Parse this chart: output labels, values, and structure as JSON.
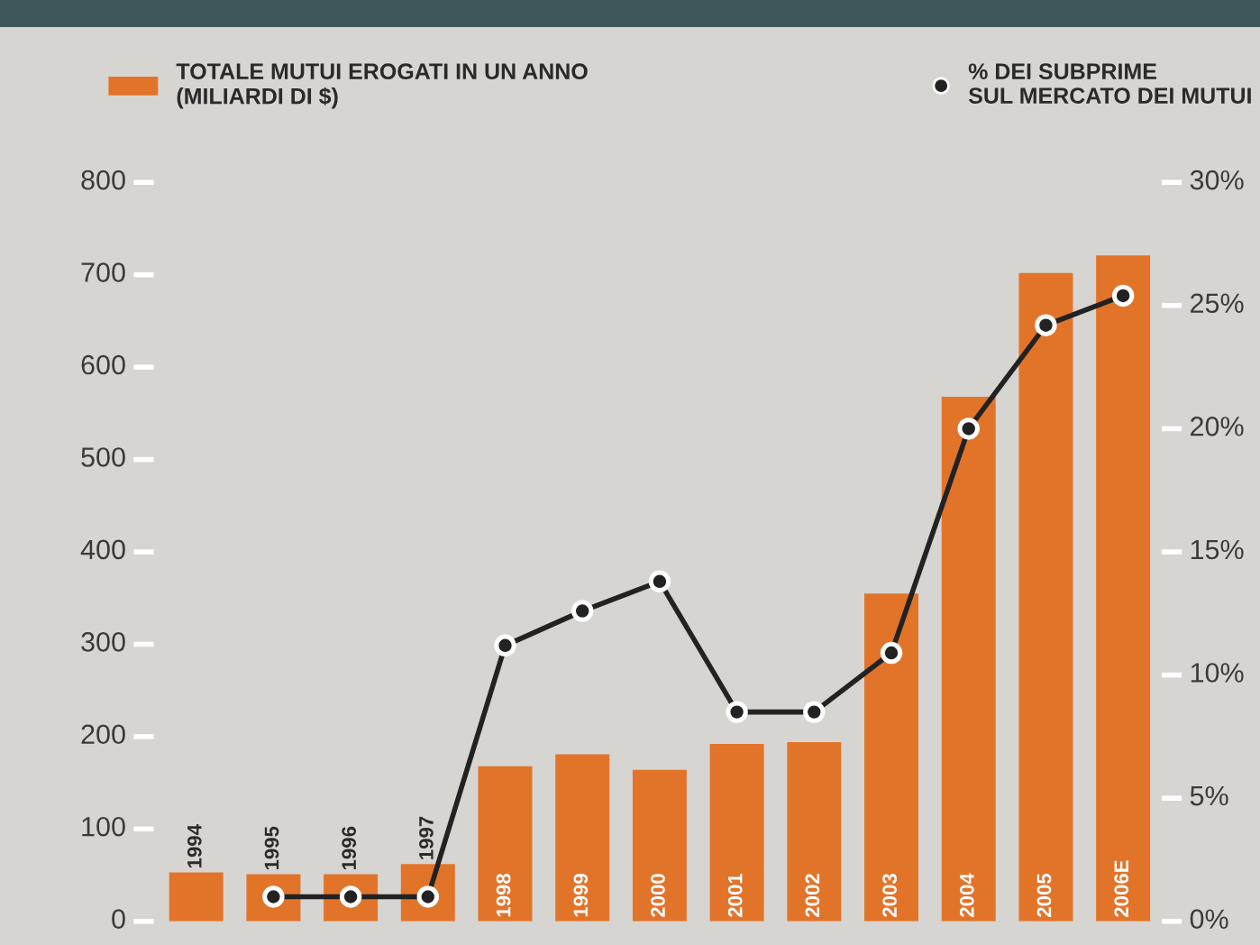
{
  "chart_data": {
    "type": "bar",
    "categories": [
      "1994",
      "1995",
      "1996",
      "1997",
      "1998",
      "1999",
      "2000",
      "2001",
      "2002",
      "2003",
      "2004",
      "2005",
      "2006E"
    ],
    "series": [
      {
        "name": "TOTALE MUTUI EROGATI IN UN ANNO\n(MILIARDI DI $)",
        "color": "#e2742a",
        "values": [
          53,
          51,
          51,
          62,
          168,
          181,
          164,
          192,
          194,
          355,
          568,
          702,
          721
        ]
      },
      {
        "name": "% DEI SUBPRIME\nSUL MERCATO DEI MUTUI",
        "type": "line",
        "axis": "y2",
        "color": "#222222",
        "marker": "circle",
        "line_style": "solid",
        "values": [
          null,
          1.0,
          1.0,
          1.0,
          11.2,
          12.6,
          13.8,
          8.5,
          8.5,
          10.9,
          20.0,
          24.2,
          25.4
        ]
      }
    ],
    "ylim": [
      0,
      800
    ],
    "yticks": [
      0,
      100,
      200,
      300,
      400,
      500,
      600,
      700,
      800
    ],
    "y2lim": [
      0,
      30
    ],
    "y2ticks": [
      {
        "value": 0,
        "label": "0%"
      },
      {
        "value": 5,
        "label": "5%"
      },
      {
        "value": 10,
        "label": "10%"
      },
      {
        "value": 15,
        "label": "15%"
      },
      {
        "value": 20,
        "label": "20%"
      },
      {
        "value": 25,
        "label": "25%"
      },
      {
        "value": 30,
        "label": "30%"
      }
    ],
    "grid": false,
    "legend": "top"
  }
}
